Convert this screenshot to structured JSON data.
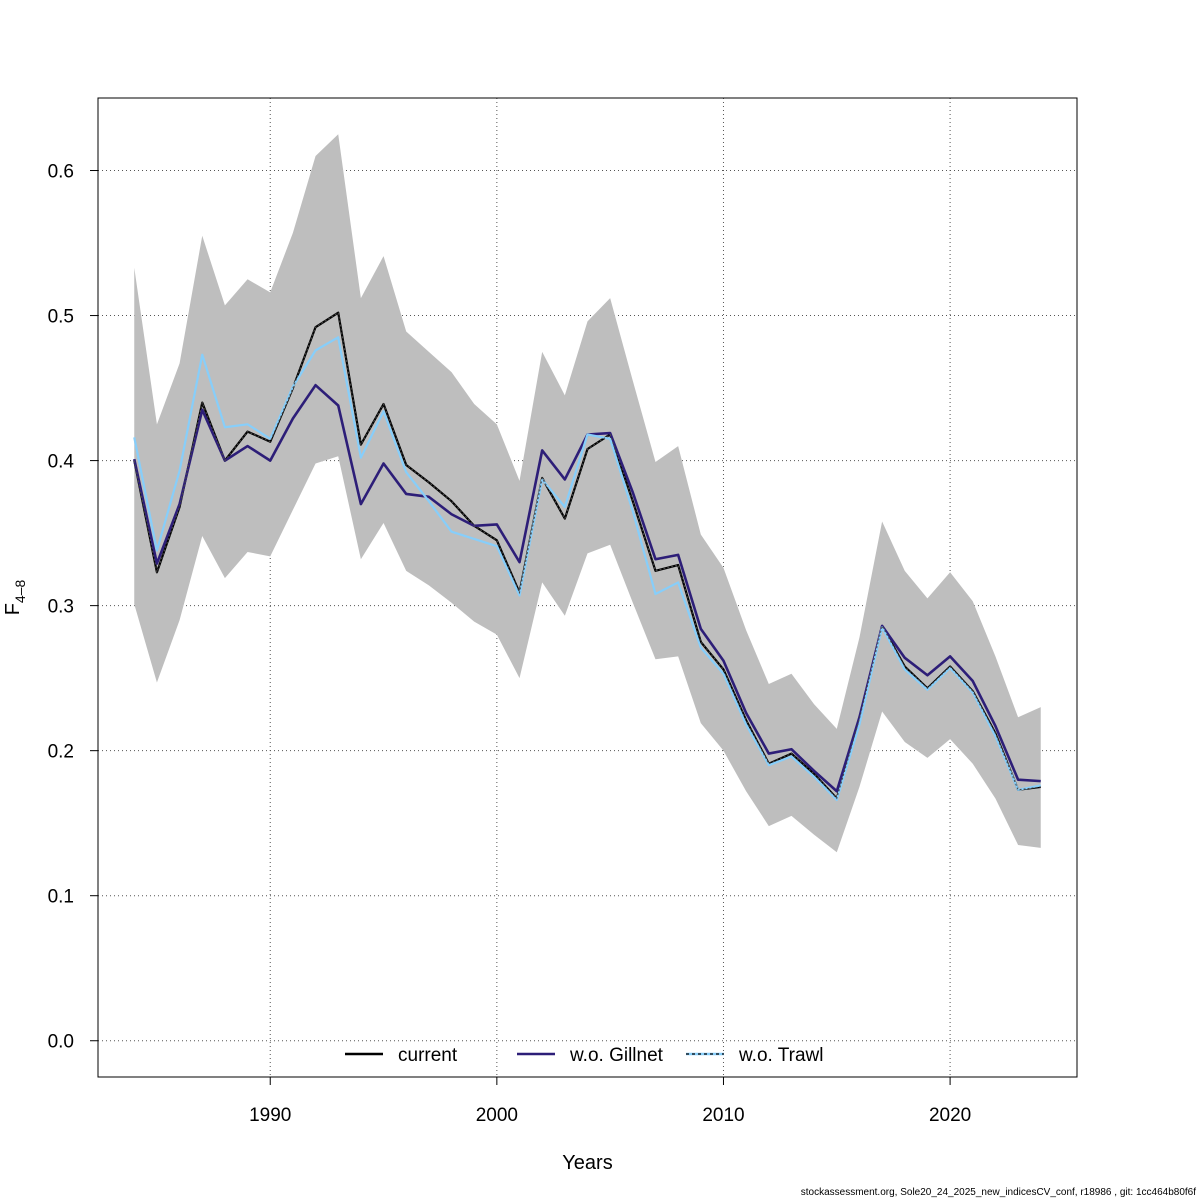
{
  "chart_data": {
    "type": "line",
    "xlabel": "Years",
    "ylabel_main": "F",
    "ylabel_sub": "4–8",
    "xlim": [
      1982.4,
      2025.6
    ],
    "ylim": [
      -0.025,
      0.65
    ],
    "xticks": [
      1990,
      2000,
      2010,
      2020
    ],
    "yticks": [
      0.0,
      0.1,
      0.2,
      0.3,
      0.4,
      0.5,
      0.6
    ],
    "grid": true,
    "legend_position": "bottom-center",
    "x": [
      1984,
      1985,
      1986,
      1987,
      1988,
      1989,
      1990,
      1991,
      1992,
      1993,
      1994,
      1995,
      1996,
      1997,
      1998,
      1999,
      2000,
      2001,
      2002,
      2003,
      2004,
      2005,
      2006,
      2007,
      2008,
      2009,
      2010,
      2011,
      2012,
      2013,
      2014,
      2015,
      2016,
      2017,
      2018,
      2019,
      2020,
      2021,
      2022,
      2023,
      2024
    ],
    "band": {
      "upper": [
        0.533,
        0.425,
        0.467,
        0.555,
        0.507,
        0.525,
        0.516,
        0.557,
        0.61,
        0.625,
        0.512,
        0.541,
        0.489,
        0.475,
        0.461,
        0.439,
        0.425,
        0.386,
        0.475,
        0.445,
        0.496,
        0.512,
        0.455,
        0.399,
        0.41,
        0.349,
        0.326,
        0.283,
        0.246,
        0.253,
        0.232,
        0.215,
        0.278,
        0.358,
        0.324,
        0.305,
        0.323,
        0.303,
        0.265,
        0.223,
        0.23
      ],
      "lower": [
        0.301,
        0.247,
        0.29,
        0.348,
        0.319,
        0.337,
        0.334,
        0.366,
        0.398,
        0.403,
        0.332,
        0.357,
        0.324,
        0.314,
        0.302,
        0.289,
        0.28,
        0.25,
        0.316,
        0.293,
        0.336,
        0.342,
        0.302,
        0.263,
        0.265,
        0.219,
        0.2,
        0.172,
        0.148,
        0.155,
        0.142,
        0.13,
        0.175,
        0.227,
        0.206,
        0.195,
        0.208,
        0.191,
        0.167,
        0.135,
        0.133
      ],
      "color": "#bebebe"
    },
    "series": [
      {
        "name": "current",
        "color": "#000000",
        "width": 2.2,
        "dash": "",
        "values": [
          0.4,
          0.323,
          0.368,
          0.44,
          0.4,
          0.42,
          0.413,
          0.45,
          0.492,
          0.502,
          0.411,
          0.439,
          0.397,
          0.385,
          0.372,
          0.355,
          0.345,
          0.309,
          0.388,
          0.36,
          0.408,
          0.418,
          0.372,
          0.324,
          0.328,
          0.275,
          0.256,
          0.221,
          0.191,
          0.198,
          0.184,
          0.167,
          0.222,
          0.286,
          0.258,
          0.243,
          0.258,
          0.241,
          0.212,
          0.173,
          0.175
        ]
      },
      {
        "name": "w.o. Gillnet",
        "color": "#2d1e78",
        "width": 2.6,
        "dash": "",
        "values": [
          0.401,
          0.329,
          0.37,
          0.435,
          0.4,
          0.41,
          0.4,
          0.429,
          0.452,
          0.438,
          0.37,
          0.398,
          0.377,
          0.375,
          0.363,
          0.355,
          0.356,
          0.33,
          0.407,
          0.387,
          0.418,
          0.419,
          0.378,
          0.332,
          0.335,
          0.284,
          0.262,
          0.226,
          0.198,
          0.201,
          0.186,
          0.172,
          0.223,
          0.286,
          0.264,
          0.252,
          0.265,
          0.248,
          0.217,
          0.18,
          0.179
        ]
      },
      {
        "name": "w.o. Trawl",
        "color": "#87cefa",
        "width": 2.2,
        "dash": "",
        "values": [
          0.416,
          0.338,
          0.393,
          0.473,
          0.423,
          0.425,
          0.415,
          0.451,
          0.476,
          0.485,
          0.402,
          0.434,
          0.392,
          0.372,
          0.351,
          0.346,
          0.341,
          0.307,
          0.387,
          0.368,
          0.418,
          0.415,
          0.365,
          0.308,
          0.316,
          0.271,
          0.253,
          0.218,
          0.19,
          0.196,
          0.182,
          0.166,
          0.218,
          0.285,
          0.256,
          0.242,
          0.257,
          0.24,
          0.21,
          0.173,
          0.176
        ]
      }
    ]
  },
  "legend": {
    "items": [
      {
        "label": "current",
        "color": "#000000",
        "dash": ""
      },
      {
        "label": "w.o. Gillnet",
        "color": "#2d1e78",
        "dash": ""
      },
      {
        "label": "w.o. Trawl",
        "color": "#87cefa",
        "dash": "3,3",
        "inner": "#000000"
      }
    ]
  },
  "footer": "stockassessment.org, Sole20_24_2025_new_indicesCV_conf, r18986 , git: 1cc464b80f6f"
}
